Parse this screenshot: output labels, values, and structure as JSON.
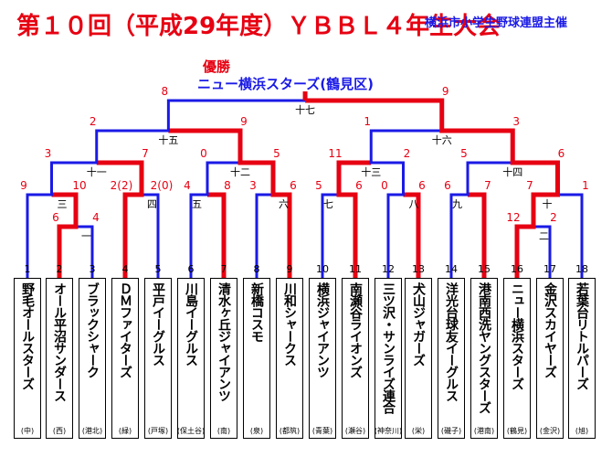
{
  "title": "第１０回（平成29年度）ＹＢＢＬ４年生大会",
  "organizer": "横浜市小学生野球連盟主催",
  "champion_label": "優勝",
  "champion_name": "ニュー横浜スターズ(鶴見区)",
  "colors": {
    "winner": "#e60012",
    "loser": "#1a1ae6",
    "title": "#e60012",
    "organizer": "#1a1ae6"
  },
  "teams": [
    {
      "seed": "1",
      "name": "野毛オールスターズ",
      "city": "(中)"
    },
    {
      "seed": "2",
      "name": "オール平沼サンダース",
      "city": "(西)"
    },
    {
      "seed": "3",
      "name": "ブラックシャーク",
      "city": "(港北)"
    },
    {
      "seed": "4",
      "name": "ＤＭファイターズ",
      "city": "(緑)"
    },
    {
      "seed": "5",
      "name": "平戸イーグルス",
      "city": "(戸塚)"
    },
    {
      "seed": "6",
      "name": "川島イーグルス",
      "city": "(保土谷)"
    },
    {
      "seed": "7",
      "name": "清水ヶ丘ジャイアンツ",
      "city": "(南)"
    },
    {
      "seed": "8",
      "name": "新橋コスモ",
      "city": "(泉)"
    },
    {
      "seed": "9",
      "name": "川和シャークス",
      "city": "(都筑)"
    },
    {
      "seed": "10",
      "name": "横浜ジャイアンツ",
      "city": "(青葉)"
    },
    {
      "seed": "11",
      "name": "南瀬谷ライオンズ",
      "city": "(瀬谷)"
    },
    {
      "seed": "12",
      "name": "三ツ沢・サンライズ連合",
      "city": "(神奈川)"
    },
    {
      "seed": "13",
      "name": "犬山ジャガーズ",
      "city": "(栄)"
    },
    {
      "seed": "14",
      "name": "洋光台球友イーグルス",
      "city": "(磯子)"
    },
    {
      "seed": "15",
      "name": "港南西洗ヤングスターズ",
      "city": "(港南)"
    },
    {
      "seed": "16",
      "name": "ニュー横浜スターズ",
      "city": "(鶴見)"
    },
    {
      "seed": "17",
      "name": "金沢スカイヤーズ",
      "city": "(金沢)"
    },
    {
      "seed": "18",
      "name": "若葉台リトルパーズ",
      "city": "(旭)"
    }
  ],
  "matches": [
    {
      "label": "一",
      "left_score": "6",
      "right_score": "4",
      "winner": "left"
    },
    {
      "label": "二",
      "left_score": "12",
      "right_score": "2",
      "winner": "left"
    },
    {
      "label": "三",
      "left_score": "9",
      "right_score": "10",
      "winner": "right"
    },
    {
      "label": "四",
      "left_score": "2(2)",
      "right_score": "2(0)",
      "winner": "left"
    },
    {
      "label": "五",
      "left_score": "4",
      "right_score": "8",
      "winner": "right"
    },
    {
      "label": "六",
      "left_score": "3",
      "right_score": "6",
      "winner": "right"
    },
    {
      "label": "七",
      "left_score": "5",
      "right_score": "6",
      "winner": "right"
    },
    {
      "label": "八",
      "left_score": "0",
      "right_score": "6",
      "winner": "right"
    },
    {
      "label": "九",
      "left_score": "6",
      "right_score": "7",
      "winner": "right"
    },
    {
      "label": "十",
      "left_score": "7",
      "right_score": "1",
      "winner": "left"
    },
    {
      "label": "十一",
      "left_score": "3",
      "right_score": "7",
      "winner": "right"
    },
    {
      "label": "十二",
      "left_score": "0",
      "right_score": "5",
      "winner": "right"
    },
    {
      "label": "十三",
      "left_score": "11",
      "right_score": "2",
      "winner": "left"
    },
    {
      "label": "十四",
      "left_score": "5",
      "right_score": "6",
      "winner": "right"
    },
    {
      "label": "十五",
      "left_score": "2",
      "right_score": "9",
      "winner": "right"
    },
    {
      "label": "十六",
      "left_score": "1",
      "right_score": "3",
      "winner": "right"
    },
    {
      "label": "十七",
      "left_score": "8",
      "right_score": "9",
      "winner": "right"
    }
  ]
}
